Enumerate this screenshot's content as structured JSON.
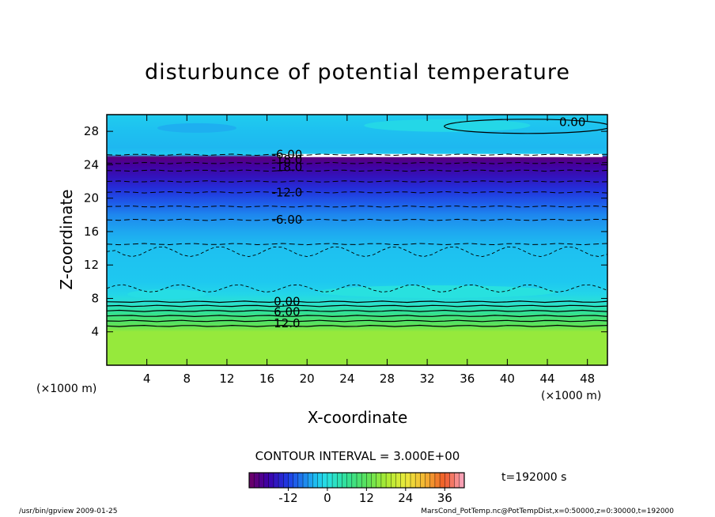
{
  "chart_data": {
    "type": "heatmap",
    "title": "disturbunce of potential temperature",
    "xlabel": "X-coordinate",
    "ylabel": "Z-coordinate",
    "x_unit_label": "(×1000 m)",
    "xlim": [
      0,
      50
    ],
    "ylim": [
      0,
      30
    ],
    "x_ticks": [
      "4",
      "8",
      "12",
      "16",
      "20",
      "24",
      "28",
      "32",
      "36",
      "40",
      "44",
      "48"
    ],
    "x_tick_values": [
      4,
      8,
      12,
      16,
      20,
      24,
      28,
      32,
      36,
      40,
      44,
      48
    ],
    "y_ticks": [
      "4",
      "8",
      "12",
      "16",
      "20",
      "24",
      "28"
    ],
    "y_tick_values": [
      4,
      8,
      12,
      16,
      20,
      24,
      28
    ],
    "field_profile": [
      {
        "z": 0,
        "value": 16.5
      },
      {
        "z": 4,
        "value": 16.5
      },
      {
        "z": 4.6,
        "value": 13
      },
      {
        "z": 5.2,
        "value": 11
      },
      {
        "z": 5.8,
        "value": 8.5
      },
      {
        "z": 6.3,
        "value": 6
      },
      {
        "z": 6.9,
        "value": 3.5
      },
      {
        "z": 7.5,
        "value": 1
      },
      {
        "z": 8.5,
        "value": -1.5
      },
      {
        "z": 10,
        "value": -3
      },
      {
        "z": 14,
        "value": -3.5
      },
      {
        "z": 16,
        "value": -5
      },
      {
        "z": 18,
        "value": -7
      },
      {
        "z": 19.5,
        "value": -10
      },
      {
        "z": 21,
        "value": -13
      },
      {
        "z": 22.5,
        "value": -16
      },
      {
        "z": 24,
        "value": -19
      },
      {
        "z": 24.9,
        "value": -22
      },
      {
        "z": 25.2,
        "value": -3
      },
      {
        "z": 26,
        "value": -4
      },
      {
        "z": 28,
        "value": -3.5
      },
      {
        "z": 30,
        "value": -2.5
      }
    ],
    "contour_lines": [
      {
        "z": 4.7,
        "value": 15,
        "style": "solid"
      },
      {
        "z": 5.3,
        "value": 12,
        "style": "solid"
      },
      {
        "z": 5.9,
        "value": 9,
        "style": "solid"
      },
      {
        "z": 6.5,
        "value": 6,
        "style": "solid"
      },
      {
        "z": 7.1,
        "value": 3,
        "style": "solid"
      },
      {
        "z": 7.6,
        "value": 0,
        "style": "solid"
      },
      {
        "z": 14.5,
        "value": -3,
        "style": "dashed"
      },
      {
        "z": 17.4,
        "value": -6,
        "style": "dashed"
      },
      {
        "z": 19.0,
        "value": -9,
        "style": "dashed"
      },
      {
        "z": 20.7,
        "value": -12,
        "style": "dashed"
      },
      {
        "z": 22.0,
        "value": -15,
        "style": "dashed"
      },
      {
        "z": 23.3,
        "value": -18,
        "style": "dashed"
      },
      {
        "z": 24.2,
        "value": -21,
        "style": "dashed"
      },
      {
        "z": 25.2,
        "value": -6,
        "style": "dashed"
      }
    ],
    "contour_labels": [
      {
        "text": "0.00",
        "x": 46.5,
        "z": 29.1
      },
      {
        "text": "-6.00",
        "x": 18,
        "z": 25.2
      },
      {
        "text": "-18.0",
        "x": 18,
        "z": 24.6
      },
      {
        "text": "-18.0",
        "x": 18,
        "z": 23.7
      },
      {
        "text": "-12.0",
        "x": 18,
        "z": 20.7
      },
      {
        "text": "-6.00",
        "x": 18,
        "z": 17.4
      },
      {
        "text": "0.00",
        "x": 18,
        "z": 7.6
      },
      {
        "text": "6.00",
        "x": 18,
        "z": 6.4
      },
      {
        "text": "12.0",
        "x": 18,
        "z": 5.0
      }
    ],
    "colorbar": {
      "min": -24,
      "max": 42,
      "ticks": [
        "-12",
        "0",
        "12",
        "24",
        "36"
      ],
      "tick_values": [
        -12,
        0,
        12,
        24,
        36
      ]
    }
  },
  "contour_interval": "CONTOUR INTERVAL = 3.000E+00",
  "time_label": "t=192000 s",
  "footer_left": "/usr/bin/gpview   2009-01-25",
  "footer_right": "MarsCond_PotTemp.nc@PotTempDist,x=0:50000,z=0:30000,t=192000",
  "colors": {
    "frame": "#000000",
    "background": "#ffffff"
  }
}
